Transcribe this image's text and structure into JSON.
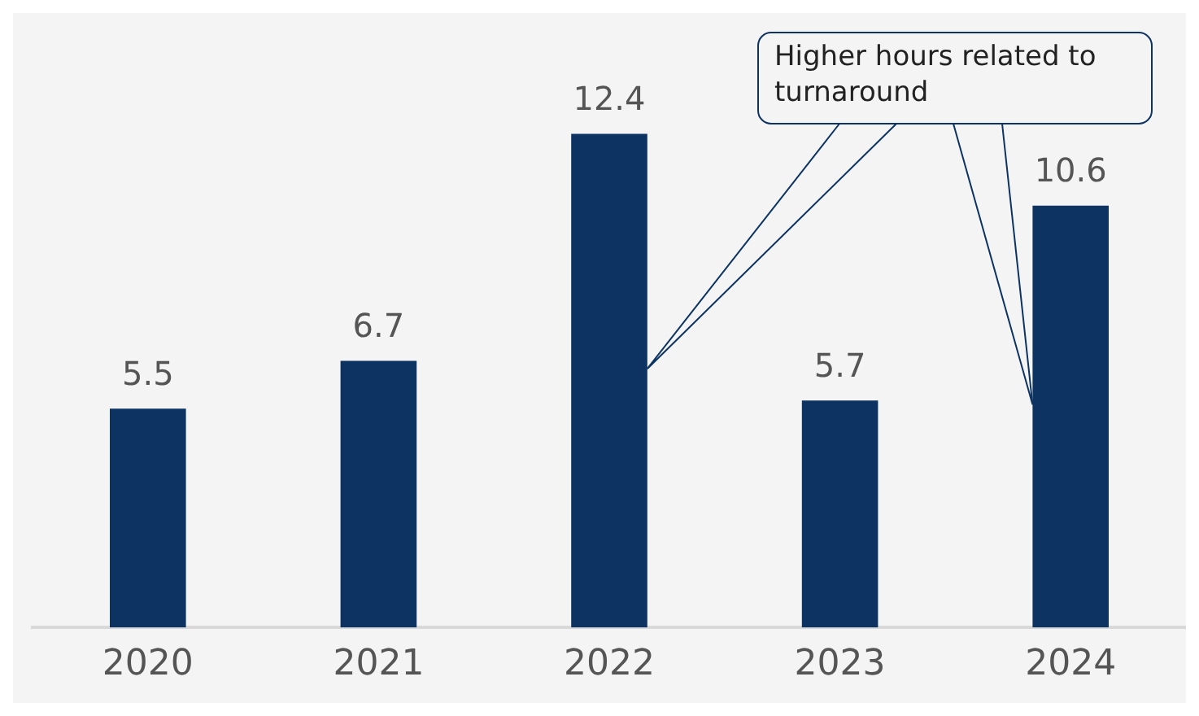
{
  "chart_data": {
    "type": "bar",
    "categories": [
      "2020",
      "2021",
      "2022",
      "2023",
      "2024"
    ],
    "values": [
      5.5,
      6.7,
      12.4,
      5.7,
      10.6
    ],
    "color": "#0c3361",
    "data_labels": true,
    "grid": false,
    "legend": false,
    "tick_labels": "x",
    "annotations": [
      "Higher hours related to turnaround"
    ]
  }
}
